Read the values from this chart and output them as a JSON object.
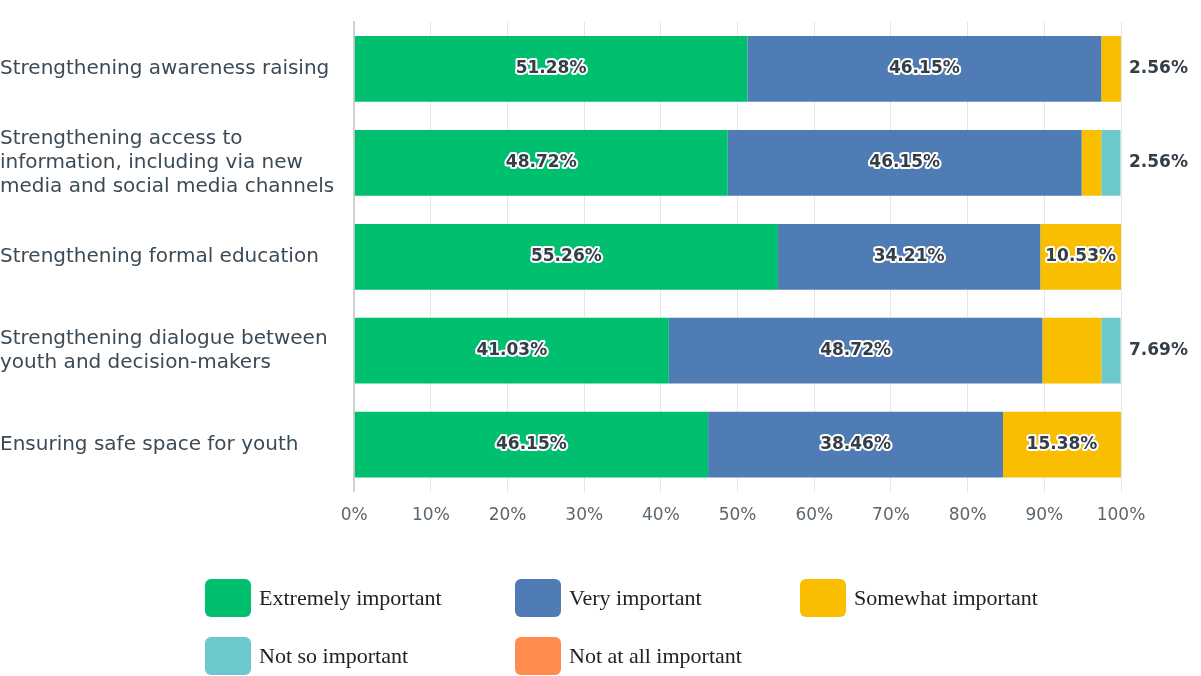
{
  "chart_data": {
    "type": "bar",
    "orientation": "horizontal",
    "stacked": true,
    "categories": [
      "Strengthening awareness raising",
      "Strengthening access to information, including via new media and social media channels",
      "Strengthening formal education",
      "Strengthening dialogue between youth and decision-makers",
      "Ensuring safe space for youth"
    ],
    "series": [
      {
        "name": "Extremely important",
        "color": "#00bf6f",
        "values": [
          51.28,
          48.72,
          55.26,
          41.03,
          46.15
        ],
        "value_labels": [
          "51.28%",
          "48.72%",
          "55.26%",
          "41.03%",
          "46.15%"
        ]
      },
      {
        "name": "Very important",
        "color": "#507cb6",
        "values": [
          46.15,
          46.15,
          34.21,
          48.72,
          38.46
        ],
        "value_labels": [
          "46.15%",
          "46.15%",
          "34.21%",
          "48.72%",
          "38.46%"
        ]
      },
      {
        "name": "Somewhat important",
        "color": "#f9be00",
        "values": [
          2.56,
          2.56,
          10.53,
          7.69,
          15.38
        ],
        "value_labels": [
          "2.56%",
          "2.56%",
          "10.53%",
          "7.69%",
          "15.38%"
        ]
      },
      {
        "name": "Not so important",
        "color": "#6bc8cd",
        "values": [
          0,
          2.5,
          0,
          2.5,
          0
        ],
        "value_labels": [
          null,
          null,
          null,
          null,
          null
        ]
      },
      {
        "name": "Not at all important",
        "color": "#ff8b4f",
        "values": [
          0,
          0,
          0,
          0,
          0
        ],
        "value_labels": [
          null,
          null,
          null,
          null,
          null
        ]
      }
    ],
    "xlim": [
      0,
      100
    ],
    "xticks": [
      {
        "value": 0,
        "label": "0%"
      },
      {
        "value": 10,
        "label": "10%"
      },
      {
        "value": 20,
        "label": "20%"
      },
      {
        "value": 30,
        "label": "30%"
      },
      {
        "value": 40,
        "label": "40%"
      },
      {
        "value": 50,
        "label": "50%"
      },
      {
        "value": 60,
        "label": "60%"
      },
      {
        "value": 70,
        "label": "70%"
      },
      {
        "value": 80,
        "label": "80%"
      },
      {
        "value": 90,
        "label": "90%"
      },
      {
        "value": 100,
        "label": "100%"
      }
    ],
    "grid": "x",
    "legend": "bottom"
  }
}
